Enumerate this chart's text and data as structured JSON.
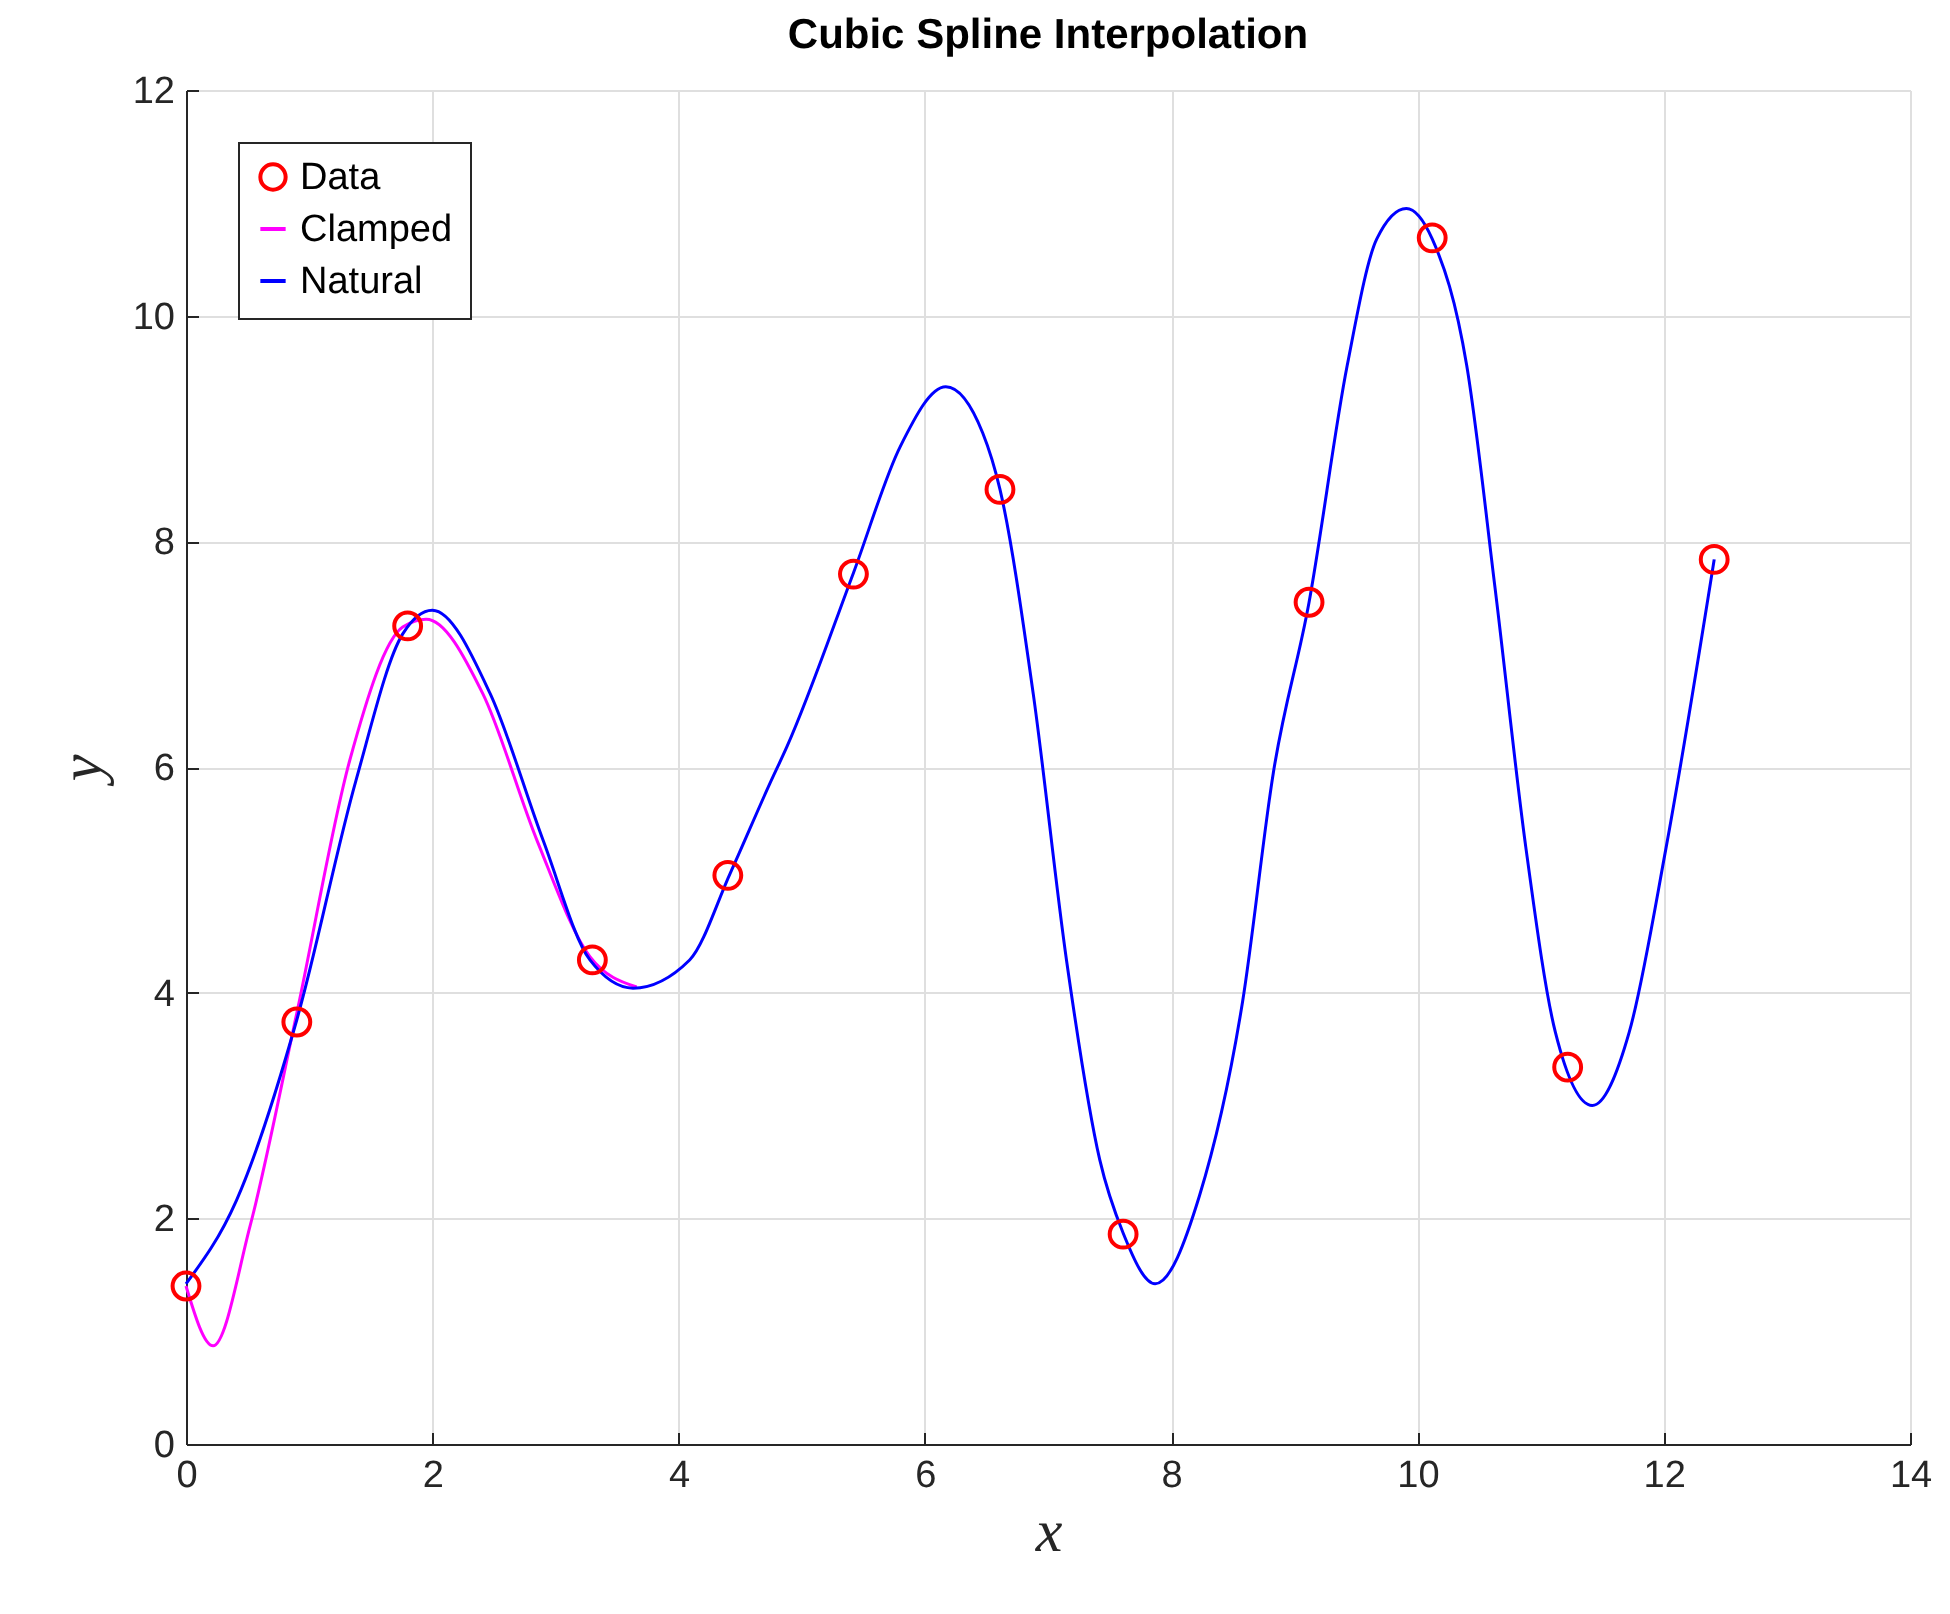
{
  "chart_data": {
    "type": "line",
    "title": "Cubic Spline Interpolation",
    "xlabel": "x",
    "ylabel": "y",
    "xlim": [
      0,
      14
    ],
    "xticks": [
      0,
      2,
      4,
      6,
      8,
      10,
      12,
      14
    ],
    "ylim": [
      0,
      12
    ],
    "yticks": [
      0,
      2,
      4,
      6,
      8,
      10,
      12
    ],
    "grid": true,
    "legend": "top left",
    "series": [
      {
        "name": "Data",
        "type": "scatter",
        "marker": "circle",
        "color": "#ff0000",
        "x": [
          0,
          0.9,
          1.8,
          3.3,
          4.4,
          5.42,
          6.61,
          7.61,
          9.12,
          10.12,
          11.22,
          12.41
        ],
        "values": [
          1.4,
          3.74,
          7.25,
          4.29,
          5.04,
          7.71,
          8.46,
          1.86,
          7.46,
          10.69,
          3.34,
          7.84
        ]
      },
      {
        "name": "Clamped",
        "marker": "none",
        "color": "#ff00ff",
        "x": [
          0,
          0.22,
          0.52,
          0.9,
          1.33,
          1.76,
          1.95,
          2.41,
          2.85,
          3.28,
          3.66
        ],
        "values": [
          1.4,
          0.87,
          1.93,
          3.82,
          6.06,
          7.24,
          7.31,
          6.65,
          5.35,
          4.32,
          4.05
        ]
      },
      {
        "name": "Natural",
        "marker": "none",
        "color": "#0000ff",
        "x": [
          0,
          0.41,
          0.9,
          1.38,
          1.76,
          2.0,
          2.47,
          2.9,
          3.28,
          3.63,
          4.09,
          4.42,
          4.74,
          4.88,
          5.42,
          5.8,
          6.17,
          6.47,
          6.61,
          6.88,
          7.15,
          7.42,
          7.61,
          7.87,
          8.23,
          8.58,
          8.83,
          9.12,
          9.43,
          9.67,
          9.91,
          10.12,
          10.4,
          10.63,
          10.88,
          11.12,
          11.42,
          11.72,
          12.02,
          12.41
        ],
        "values": [
          1.42,
          2.16,
          3.76,
          5.88,
          7.18,
          7.39,
          6.65,
          5.35,
          4.29,
          4.04,
          4.29,
          5.06,
          5.85,
          6.18,
          7.72,
          8.84,
          9.37,
          8.96,
          8.46,
          6.65,
          4.29,
          2.52,
          1.87,
          1.42,
          2.2,
          3.92,
          5.95,
          7.46,
          9.56,
          10.68,
          10.95,
          10.68,
          9.56,
          7.59,
          5.29,
          3.65,
          3.0,
          3.65,
          5.29,
          7.84
        ]
      }
    ]
  }
}
